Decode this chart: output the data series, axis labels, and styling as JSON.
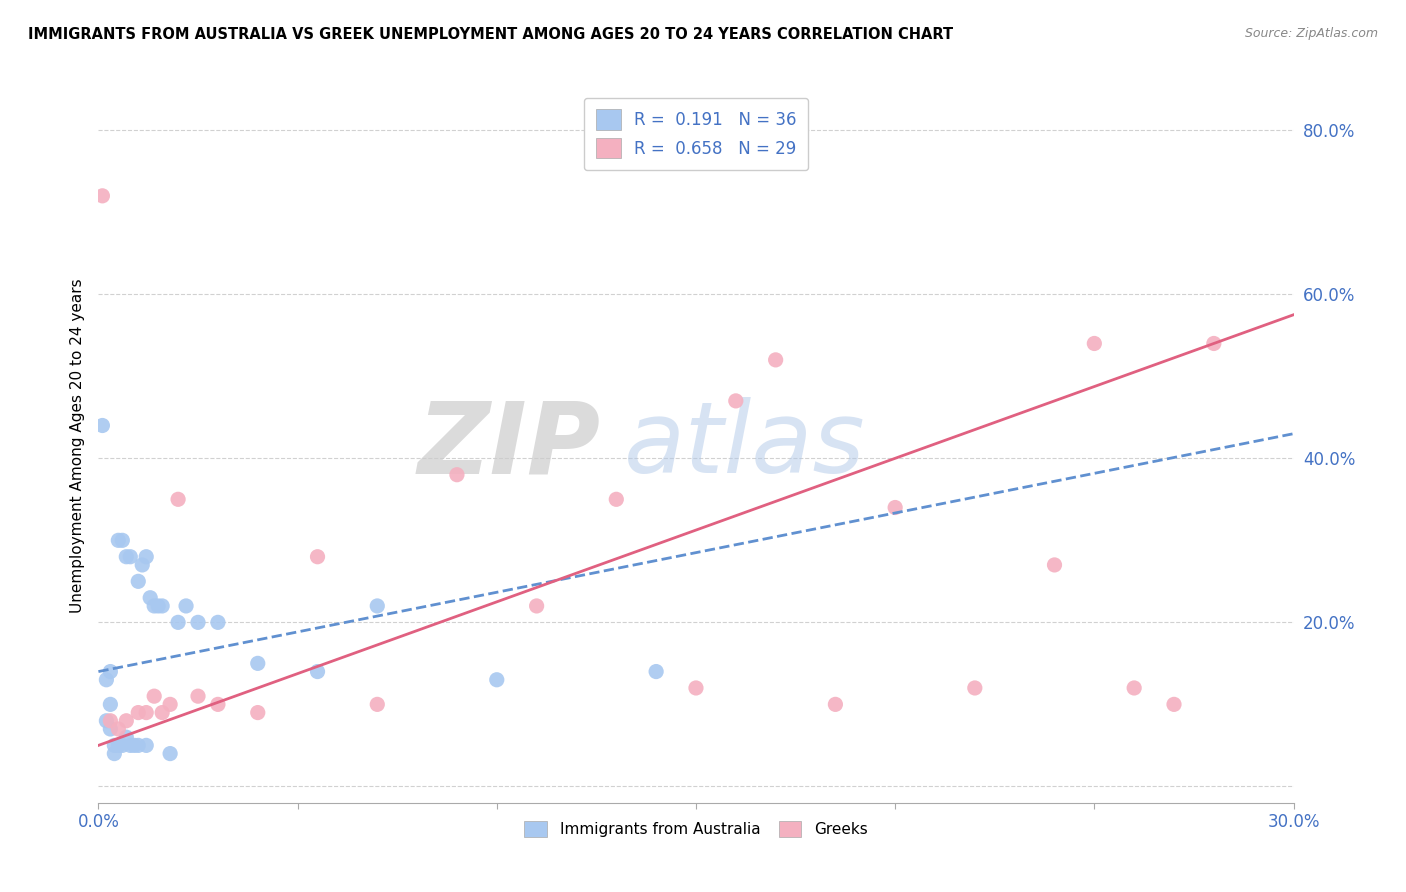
{
  "title": "IMMIGRANTS FROM AUSTRALIA VS GREEK UNEMPLOYMENT AMONG AGES 20 TO 24 YEARS CORRELATION CHART",
  "source": "Source: ZipAtlas.com",
  "ylabel": "Unemployment Among Ages 20 to 24 years",
  "xlim": [
    0.0,
    0.3
  ],
  "ylim": [
    -0.02,
    0.85
  ],
  "xticks": [
    0.0,
    0.05,
    0.1,
    0.15,
    0.2,
    0.25,
    0.3
  ],
  "xtick_labels": [
    "0.0%",
    "",
    "",
    "",
    "",
    "",
    "30.0%"
  ],
  "yticks": [
    0.0,
    0.2,
    0.4,
    0.6,
    0.8
  ],
  "ytick_labels": [
    "",
    "20.0%",
    "40.0%",
    "60.0%",
    "80.0%"
  ],
  "legend1_r": "0.191",
  "legend1_n": "36",
  "legend2_r": "0.658",
  "legend2_n": "29",
  "color_blue": "#A8C8F0",
  "color_pink": "#F4B0C0",
  "color_blue_line": "#6090D0",
  "color_pink_line": "#E06080",
  "watermark_zip": "ZIP",
  "watermark_atlas": "atlas",
  "blue_scatter_x": [
    0.001,
    0.002,
    0.002,
    0.003,
    0.003,
    0.003,
    0.004,
    0.004,
    0.005,
    0.005,
    0.006,
    0.006,
    0.007,
    0.007,
    0.008,
    0.008,
    0.009,
    0.01,
    0.01,
    0.011,
    0.012,
    0.012,
    0.013,
    0.014,
    0.015,
    0.016,
    0.018,
    0.02,
    0.022,
    0.025,
    0.03,
    0.04,
    0.055,
    0.07,
    0.1,
    0.14
  ],
  "blue_scatter_y": [
    0.44,
    0.13,
    0.08,
    0.14,
    0.1,
    0.07,
    0.05,
    0.04,
    0.3,
    0.05,
    0.3,
    0.05,
    0.28,
    0.06,
    0.28,
    0.05,
    0.05,
    0.25,
    0.05,
    0.27,
    0.28,
    0.05,
    0.23,
    0.22,
    0.22,
    0.22,
    0.04,
    0.2,
    0.22,
    0.2,
    0.2,
    0.15,
    0.14,
    0.22,
    0.13,
    0.14
  ],
  "pink_scatter_x": [
    0.001,
    0.003,
    0.005,
    0.007,
    0.01,
    0.012,
    0.014,
    0.016,
    0.018,
    0.02,
    0.025,
    0.03,
    0.04,
    0.055,
    0.07,
    0.09,
    0.11,
    0.13,
    0.15,
    0.16,
    0.17,
    0.185,
    0.2,
    0.22,
    0.24,
    0.25,
    0.26,
    0.27,
    0.28
  ],
  "pink_scatter_y": [
    0.72,
    0.08,
    0.07,
    0.08,
    0.09,
    0.09,
    0.11,
    0.09,
    0.1,
    0.35,
    0.11,
    0.1,
    0.09,
    0.28,
    0.1,
    0.38,
    0.22,
    0.35,
    0.12,
    0.47,
    0.52,
    0.1,
    0.34,
    0.12,
    0.27,
    0.54,
    0.12,
    0.1,
    0.54
  ],
  "blue_line_x": [
    0.0,
    0.3
  ],
  "blue_line_y": [
    0.14,
    0.43
  ],
  "pink_line_x": [
    0.0,
    0.3
  ],
  "pink_line_y": [
    0.05,
    0.575
  ]
}
